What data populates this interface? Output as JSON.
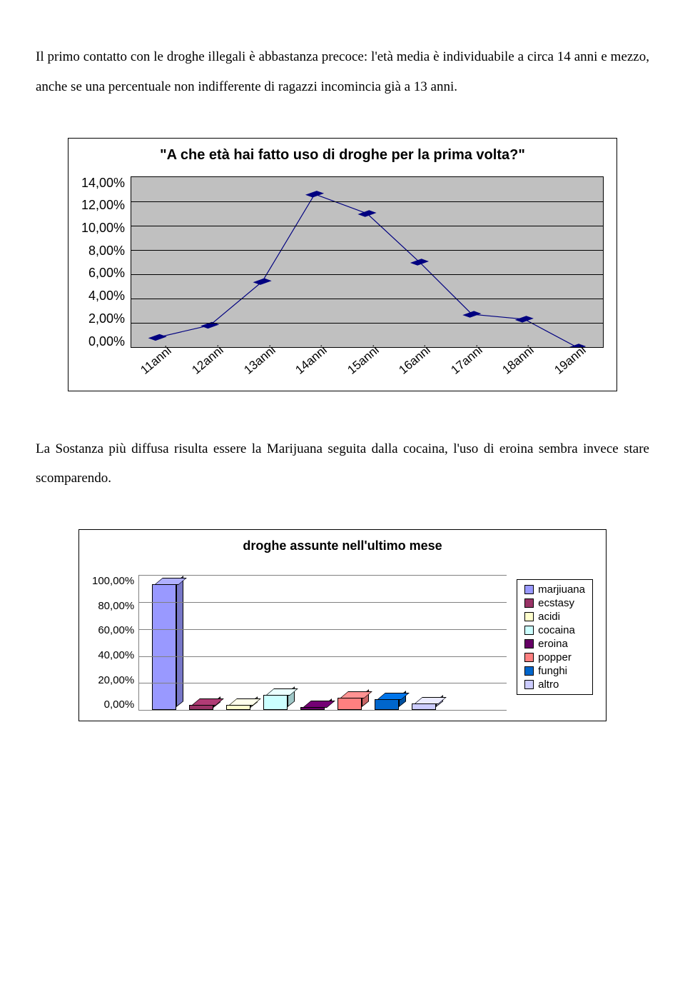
{
  "para1": "Il primo contatto con le droghe illegali è abbastanza precoce: l'età media è individuabile a circa 14 anni e mezzo, anche se una percentuale non indifferente di ragazzi incomincia già a 13 anni.",
  "para2": "La Sostanza più diffusa risulta essere la Marijuana seguita dalla cocaina, l'uso di eroina sembra invece stare scomparendo.",
  "chart1": {
    "title": "\"A che età hai fatto uso di droghe per la prima volta?\"",
    "ylim": [
      0,
      14
    ],
    "ytick_step": 2,
    "ytick_labels": [
      "14,00%",
      "12,00%",
      "10,00%",
      "8,00%",
      "6,00%",
      "4,00%",
      "2,00%",
      "0,00%"
    ],
    "categories": [
      "11anni",
      "12anni",
      "13anni",
      "14anni",
      "15anni",
      "16anni",
      "17anni",
      "18anni",
      "19anni"
    ],
    "values": [
      0.8,
      1.8,
      5.4,
      12.6,
      11.0,
      7.0,
      2.7,
      2.3,
      0.0
    ],
    "line_color": "#000080",
    "marker_color": "#000080",
    "plot_bg": "#c0c0c0",
    "grid_color": "#000000"
  },
  "chart2": {
    "title": "droghe assunte nell'ultimo mese",
    "ylim": [
      0,
      100
    ],
    "ytick_step": 20,
    "ytick_labels": [
      "100,00%",
      "80,00%",
      "60,00%",
      "40,00%",
      "20,00%",
      "0,00%"
    ],
    "series": [
      {
        "label": "marjiuana",
        "value": 93,
        "color": "#9999ff"
      },
      {
        "label": "ecstasy",
        "value": 4,
        "color": "#993366"
      },
      {
        "label": "acidi",
        "value": 4,
        "color": "#ffffcc"
      },
      {
        "label": "cocaina",
        "value": 11,
        "color": "#ccffff"
      },
      {
        "label": "eroina",
        "value": 2,
        "color": "#660066"
      },
      {
        "label": "popper",
        "value": 9,
        "color": "#ff8080"
      },
      {
        "label": "funghi",
        "value": 8,
        "color": "#0066cc"
      },
      {
        "label": "altro",
        "value": 5,
        "color": "#ccccff"
      }
    ]
  }
}
